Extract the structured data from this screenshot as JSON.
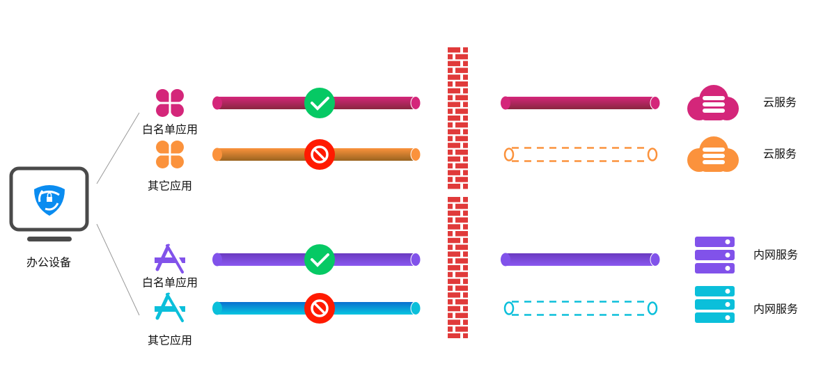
{
  "device": {
    "label": "办公设备",
    "icon": "shield-lock-icon"
  },
  "lanes": [
    {
      "app_label": "白名单应用",
      "app_icon": "clover-icon",
      "color": "#d4267a",
      "status": "allowed",
      "service_label": "云服务",
      "service_icon": "cloud-server-icon",
      "connected": true
    },
    {
      "app_label": "其它应用",
      "app_icon": "clover-icon",
      "color": "#fb923c",
      "status": "blocked",
      "service_label": "云服务",
      "service_icon": "cloud-server-icon",
      "connected": false
    },
    {
      "app_label": "白名单应用",
      "app_icon": "app-store-icon",
      "color": "#8152ea",
      "status": "allowed",
      "service_label": "内网服务",
      "service_icon": "server-rack-icon",
      "connected": true
    },
    {
      "app_label": "其它应用",
      "app_icon": "app-store-icon",
      "color": "#0bbfda",
      "status": "blocked",
      "service_label": "内网服务",
      "service_icon": "server-rack-icon",
      "connected": false
    }
  ],
  "colors": {
    "allowed": "#06c964",
    "blocked": "#ff1a00",
    "firewall": "#e03a3a",
    "monitor": "#4a4a4a",
    "shield": "#0a8cf0"
  },
  "firewall_icon": "brick-wall-icon"
}
